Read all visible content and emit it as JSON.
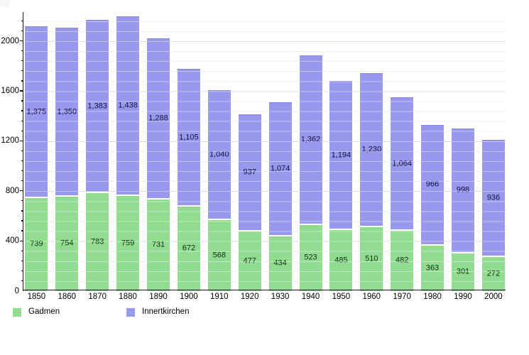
{
  "chart_data": {
    "type": "bar",
    "stacked": true,
    "title": "",
    "xlabel": "",
    "ylabel": "",
    "categories": [
      "1850",
      "1860",
      "1870",
      "1880",
      "1890",
      "1900",
      "1910",
      "1920",
      "1930",
      "1940",
      "1950",
      "1960",
      "1970",
      "1980",
      "1990",
      "2000"
    ],
    "series": [
      {
        "name": "Gadmen",
        "color": "#92dc92",
        "label_color": "#0e300e",
        "values": [
          739,
          754,
          783,
          759,
          731,
          672,
          568,
          477,
          434,
          523,
          485,
          510,
          482,
          363,
          301,
          272
        ]
      },
      {
        "name": "Innertkirchen",
        "color": "#9898ec",
        "label_color": "#101040",
        "values": [
          1375,
          1350,
          1383,
          1438,
          1288,
          1105,
          1040,
          937,
          1074,
          1362,
          1194,
          1230,
          1064,
          966,
          998,
          936
        ]
      }
    ],
    "totals": [
      2114,
      2104,
      2166,
      2197,
      2019,
      1777,
      1608,
      1414,
      1508,
      1885,
      1679,
      1740,
      1546,
      1329,
      1299,
      1208
    ],
    "yticks": [
      0,
      400,
      800,
      1200,
      1600,
      2000
    ],
    "minor_grid_step": 80,
    "ylim": [
      0,
      2224
    ],
    "grid": true,
    "value_labels": "inside-segments, thousands separated with comma",
    "legend_position": "bottom-left",
    "axis_color": "#141414",
    "background_color": "#ffffff"
  }
}
